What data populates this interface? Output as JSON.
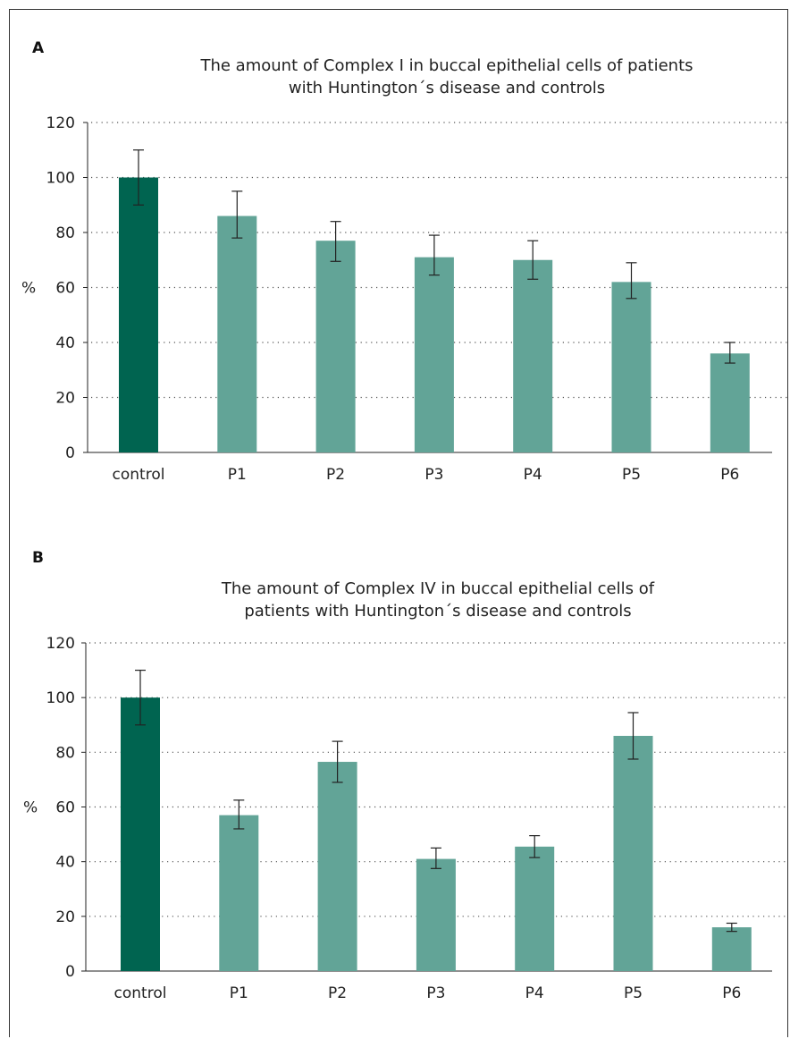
{
  "colors": {
    "control": "#006450",
    "patient": "#62a497",
    "error_bar": "#222222",
    "grid": "#555555"
  },
  "chart_data": [
    {
      "type": "bar",
      "panel_label": "A",
      "title_lines": [
        "The amount of Complex I in buccal epithelial cells of patients",
        "with Huntington´s disease and controls"
      ],
      "ylabel": "%",
      "xlabel": "",
      "ylim": [
        0,
        120
      ],
      "yticks": [
        0,
        20,
        40,
        60,
        80,
        100,
        120
      ],
      "grid": "horizontal dotted",
      "categories": [
        "control",
        "P1",
        "P2",
        "P3",
        "P4",
        "P5",
        "P6"
      ],
      "values": [
        100,
        86,
        77,
        71,
        70,
        62,
        36
      ],
      "error_low": [
        90,
        78,
        69.5,
        64.5,
        63,
        56,
        32.5
      ],
      "error_high": [
        110,
        95,
        84,
        79,
        77,
        69,
        40
      ]
    },
    {
      "type": "bar",
      "panel_label": "B",
      "title_lines": [
        "The amount of Complex IV in buccal epithelial cells of",
        "patients with Huntington´s disease and controls"
      ],
      "ylabel": "%",
      "xlabel": "",
      "ylim": [
        0,
        120
      ],
      "yticks": [
        0,
        20,
        40,
        60,
        80,
        100,
        120
      ],
      "grid": "horizontal dotted",
      "categories": [
        "control",
        "P1",
        "P2",
        "P3",
        "P4",
        "P5",
        "P6"
      ],
      "values": [
        100,
        57,
        76.5,
        41,
        45.5,
        86,
        16
      ],
      "error_low": [
        90,
        52,
        69,
        37.5,
        41.5,
        77.5,
        14.5
      ],
      "error_high": [
        110,
        62.5,
        84,
        45,
        49.5,
        94.5,
        17.5
      ]
    }
  ]
}
